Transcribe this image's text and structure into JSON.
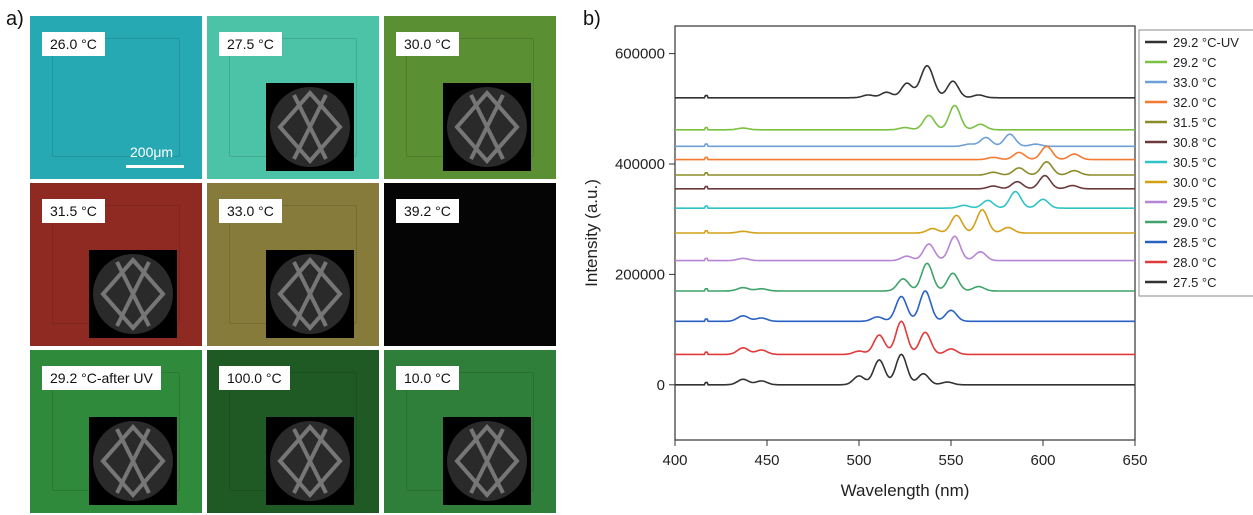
{
  "panel_a": {
    "label": "a)",
    "scale_bar": "200μm",
    "cells": [
      {
        "label": "26.0 °C",
        "bg": "#27a9b3",
        "inset": false
      },
      {
        "label": "27.5 °C",
        "bg": "#4cc2a6",
        "inset": true
      },
      {
        "label": "30.0 °C",
        "bg": "#5b8f33",
        "inset": true
      },
      {
        "label": "31.5 °C",
        "bg": "#8e2a22",
        "inset": true
      },
      {
        "label": "33.0 °C",
        "bg": "#867b3a",
        "inset": true
      },
      {
        "label": "39.2 °C",
        "bg": "#050505",
        "inset": false
      },
      {
        "label": "29.2 °C-after UV",
        "bg": "#2f8a3c",
        "inset": true
      },
      {
        "label": "100.0 °C",
        "bg": "#1f5a25",
        "inset": true
      },
      {
        "label": "10.0 °C",
        "bg": "#2f7f3a",
        "inset": true
      }
    ]
  },
  "chart_data": {
    "panel_label": "b)",
    "type": "line",
    "xlabel": "Wavelength (nm)",
    "ylabel": "Intensity (a.u.)",
    "xlim": [
      400,
      650
    ],
    "ylim": [
      -100000,
      650000
    ],
    "xticks": [
      400,
      450,
      500,
      550,
      600,
      650
    ],
    "yticks": [
      0,
      200000,
      400000,
      600000
    ],
    "legend_position": "right",
    "series": [
      {
        "name": "29.2 °C-UV",
        "color": "#333333",
        "offset": 520000,
        "peaks": [
          [
            505,
            5000,
            3
          ],
          [
            515,
            10000,
            3
          ],
          [
            526,
            26000,
            3
          ],
          [
            537,
            58000,
            3.5
          ],
          [
            551,
            30000,
            3
          ],
          [
            565,
            5000,
            3
          ]
        ]
      },
      {
        "name": "29.2 °C",
        "color": "#7ac142",
        "offset": 462000,
        "peaks": [
          [
            437,
            3000,
            3
          ],
          [
            525,
            4000,
            3
          ],
          [
            538,
            26000,
            3
          ],
          [
            552,
            44000,
            3
          ],
          [
            566,
            10000,
            3
          ]
        ]
      },
      {
        "name": "33.0 °C",
        "color": "#6ea0d8",
        "offset": 432000,
        "peaks": [
          [
            560,
            4000,
            3
          ],
          [
            569,
            16000,
            3
          ],
          [
            582,
            22000,
            3
          ],
          [
            596,
            4000,
            3
          ]
        ]
      },
      {
        "name": "32.0 °C",
        "color": "#f47a30",
        "offset": 408000,
        "peaks": [
          [
            573,
            4000,
            3
          ],
          [
            587,
            13000,
            3
          ],
          [
            602,
            24000,
            3
          ],
          [
            617,
            10000,
            3
          ]
        ]
      },
      {
        "name": "31.5 °C",
        "color": "#8b8b2a",
        "offset": 380000,
        "peaks": [
          [
            573,
            5000,
            3
          ],
          [
            587,
            13000,
            3
          ],
          [
            602,
            24000,
            3
          ],
          [
            617,
            8000,
            3
          ]
        ]
      },
      {
        "name": "30.8 °C",
        "color": "#6b3a3a",
        "offset": 355000,
        "peaks": [
          [
            573,
            5000,
            3
          ],
          [
            586,
            13000,
            3
          ],
          [
            601,
            24000,
            3
          ],
          [
            616,
            6000,
            3
          ]
        ]
      },
      {
        "name": "30.5 °C",
        "color": "#2ec4c6",
        "offset": 320000,
        "peaks": [
          [
            557,
            5000,
            3
          ],
          [
            570,
            14000,
            3
          ],
          [
            585,
            30000,
            3
          ],
          [
            600,
            16000,
            3
          ]
        ]
      },
      {
        "name": "30.0 °C",
        "color": "#d4a017",
        "offset": 275000,
        "peaks": [
          [
            437,
            3000,
            3
          ],
          [
            540,
            8000,
            3
          ],
          [
            553,
            32000,
            3
          ],
          [
            567,
            42000,
            3
          ],
          [
            581,
            10000,
            3
          ]
        ]
      },
      {
        "name": "29.5 °C",
        "color": "#b884d6",
        "offset": 225000,
        "peaks": [
          [
            437,
            4000,
            3
          ],
          [
            526,
            8000,
            3
          ],
          [
            538,
            30000,
            3
          ],
          [
            552,
            44000,
            3
          ],
          [
            566,
            16000,
            3
          ]
        ]
      },
      {
        "name": "29.0 °C",
        "color": "#3fa36a",
        "offset": 170000,
        "peaks": [
          [
            437,
            6000,
            3
          ],
          [
            447,
            4000,
            3
          ],
          [
            524,
            22000,
            3
          ],
          [
            537,
            50000,
            3
          ],
          [
            551,
            32000,
            3
          ],
          [
            565,
            8000,
            3
          ]
        ]
      },
      {
        "name": "28.5 °C",
        "color": "#2a62c4",
        "offset": 115000,
        "peaks": [
          [
            437,
            10000,
            3
          ],
          [
            447,
            6000,
            3
          ],
          [
            510,
            8000,
            3
          ],
          [
            523,
            45000,
            3
          ],
          [
            536,
            55000,
            3
          ],
          [
            550,
            20000,
            3
          ]
        ]
      },
      {
        "name": "28.0 °C",
        "color": "#e03a3a",
        "offset": 55000,
        "peaks": [
          [
            437,
            12000,
            3
          ],
          [
            447,
            8000,
            3
          ],
          [
            500,
            6000,
            3
          ],
          [
            511,
            35000,
            3
          ],
          [
            523,
            60000,
            3
          ],
          [
            536,
            40000,
            3
          ],
          [
            550,
            10000,
            3
          ]
        ]
      },
      {
        "name": "27.5 °C",
        "color": "#333333",
        "offset": 0,
        "peaks": [
          [
            437,
            10000,
            3
          ],
          [
            447,
            7000,
            3
          ],
          [
            500,
            16000,
            3
          ],
          [
            511,
            45000,
            3
          ],
          [
            523,
            55000,
            3
          ],
          [
            535,
            20000,
            3
          ],
          [
            548,
            5000,
            3
          ]
        ]
      }
    ]
  }
}
